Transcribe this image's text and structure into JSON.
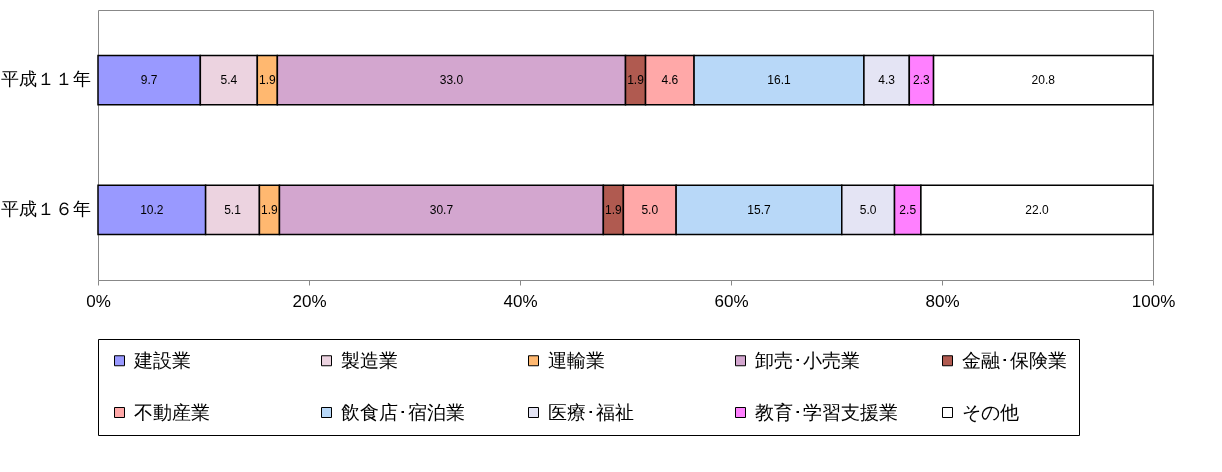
{
  "chart_data": {
    "type": "bar",
    "orientation": "horizontal",
    "stacked": true,
    "categories": [
      "平成１１年",
      "平成１６年"
    ],
    "xlim": [
      0,
      100
    ],
    "xticks": [
      {
        "value": 0,
        "label": "0%"
      },
      {
        "value": 20,
        "label": "20%"
      },
      {
        "value": 40,
        "label": "40%"
      },
      {
        "value": 60,
        "label": "60%"
      },
      {
        "value": 80,
        "label": "80%"
      },
      {
        "value": 100,
        "label": "100%"
      }
    ],
    "grid": false,
    "legend": "bottom",
    "series": [
      {
        "name": "建設業",
        "color": "#9999ff",
        "values": [
          9.7,
          10.2
        ],
        "value_labels": [
          "9.7",
          "10.2"
        ]
      },
      {
        "name": "製造業",
        "color": "#ecd3e0",
        "values": [
          5.4,
          5.1
        ],
        "value_labels": [
          "5.4",
          "5.1"
        ]
      },
      {
        "name": "運輸業",
        "color": "#ffb870",
        "values": [
          1.9,
          1.9
        ],
        "value_labels": [
          "1.9",
          "1.9"
        ]
      },
      {
        "name": "卸売･小売業",
        "color": "#d3a6cf",
        "values": [
          33.0,
          30.7
        ],
        "value_labels": [
          "33.0",
          "30.7"
        ]
      },
      {
        "name": "金融･保険業",
        "color": "#b05a50",
        "values": [
          1.9,
          1.9
        ],
        "value_labels": [
          "1.9",
          "1.9"
        ]
      },
      {
        "name": "不動産業",
        "color": "#ffa8a8",
        "values": [
          4.6,
          5.0
        ],
        "value_labels": [
          "4.6",
          "5.0"
        ]
      },
      {
        "name": "飲食店･宿泊業",
        "color": "#b8d8f8",
        "values": [
          16.1,
          15.7
        ],
        "value_labels": [
          "16.1",
          "15.7"
        ]
      },
      {
        "name": "医療･福祉",
        "color": "#e4e4f4",
        "values": [
          4.3,
          5.0
        ],
        "value_labels": [
          "4.3",
          "5.0"
        ]
      },
      {
        "name": "教育･学習支援業",
        "color": "#ff80ff",
        "values": [
          2.3,
          2.5
        ],
        "value_labels": [
          "2.3",
          "2.5"
        ]
      },
      {
        "name": "その他",
        "color": "#ffffff",
        "values": [
          20.8,
          22.0
        ],
        "value_labels": [
          "20.8",
          "22.0"
        ]
      }
    ]
  }
}
